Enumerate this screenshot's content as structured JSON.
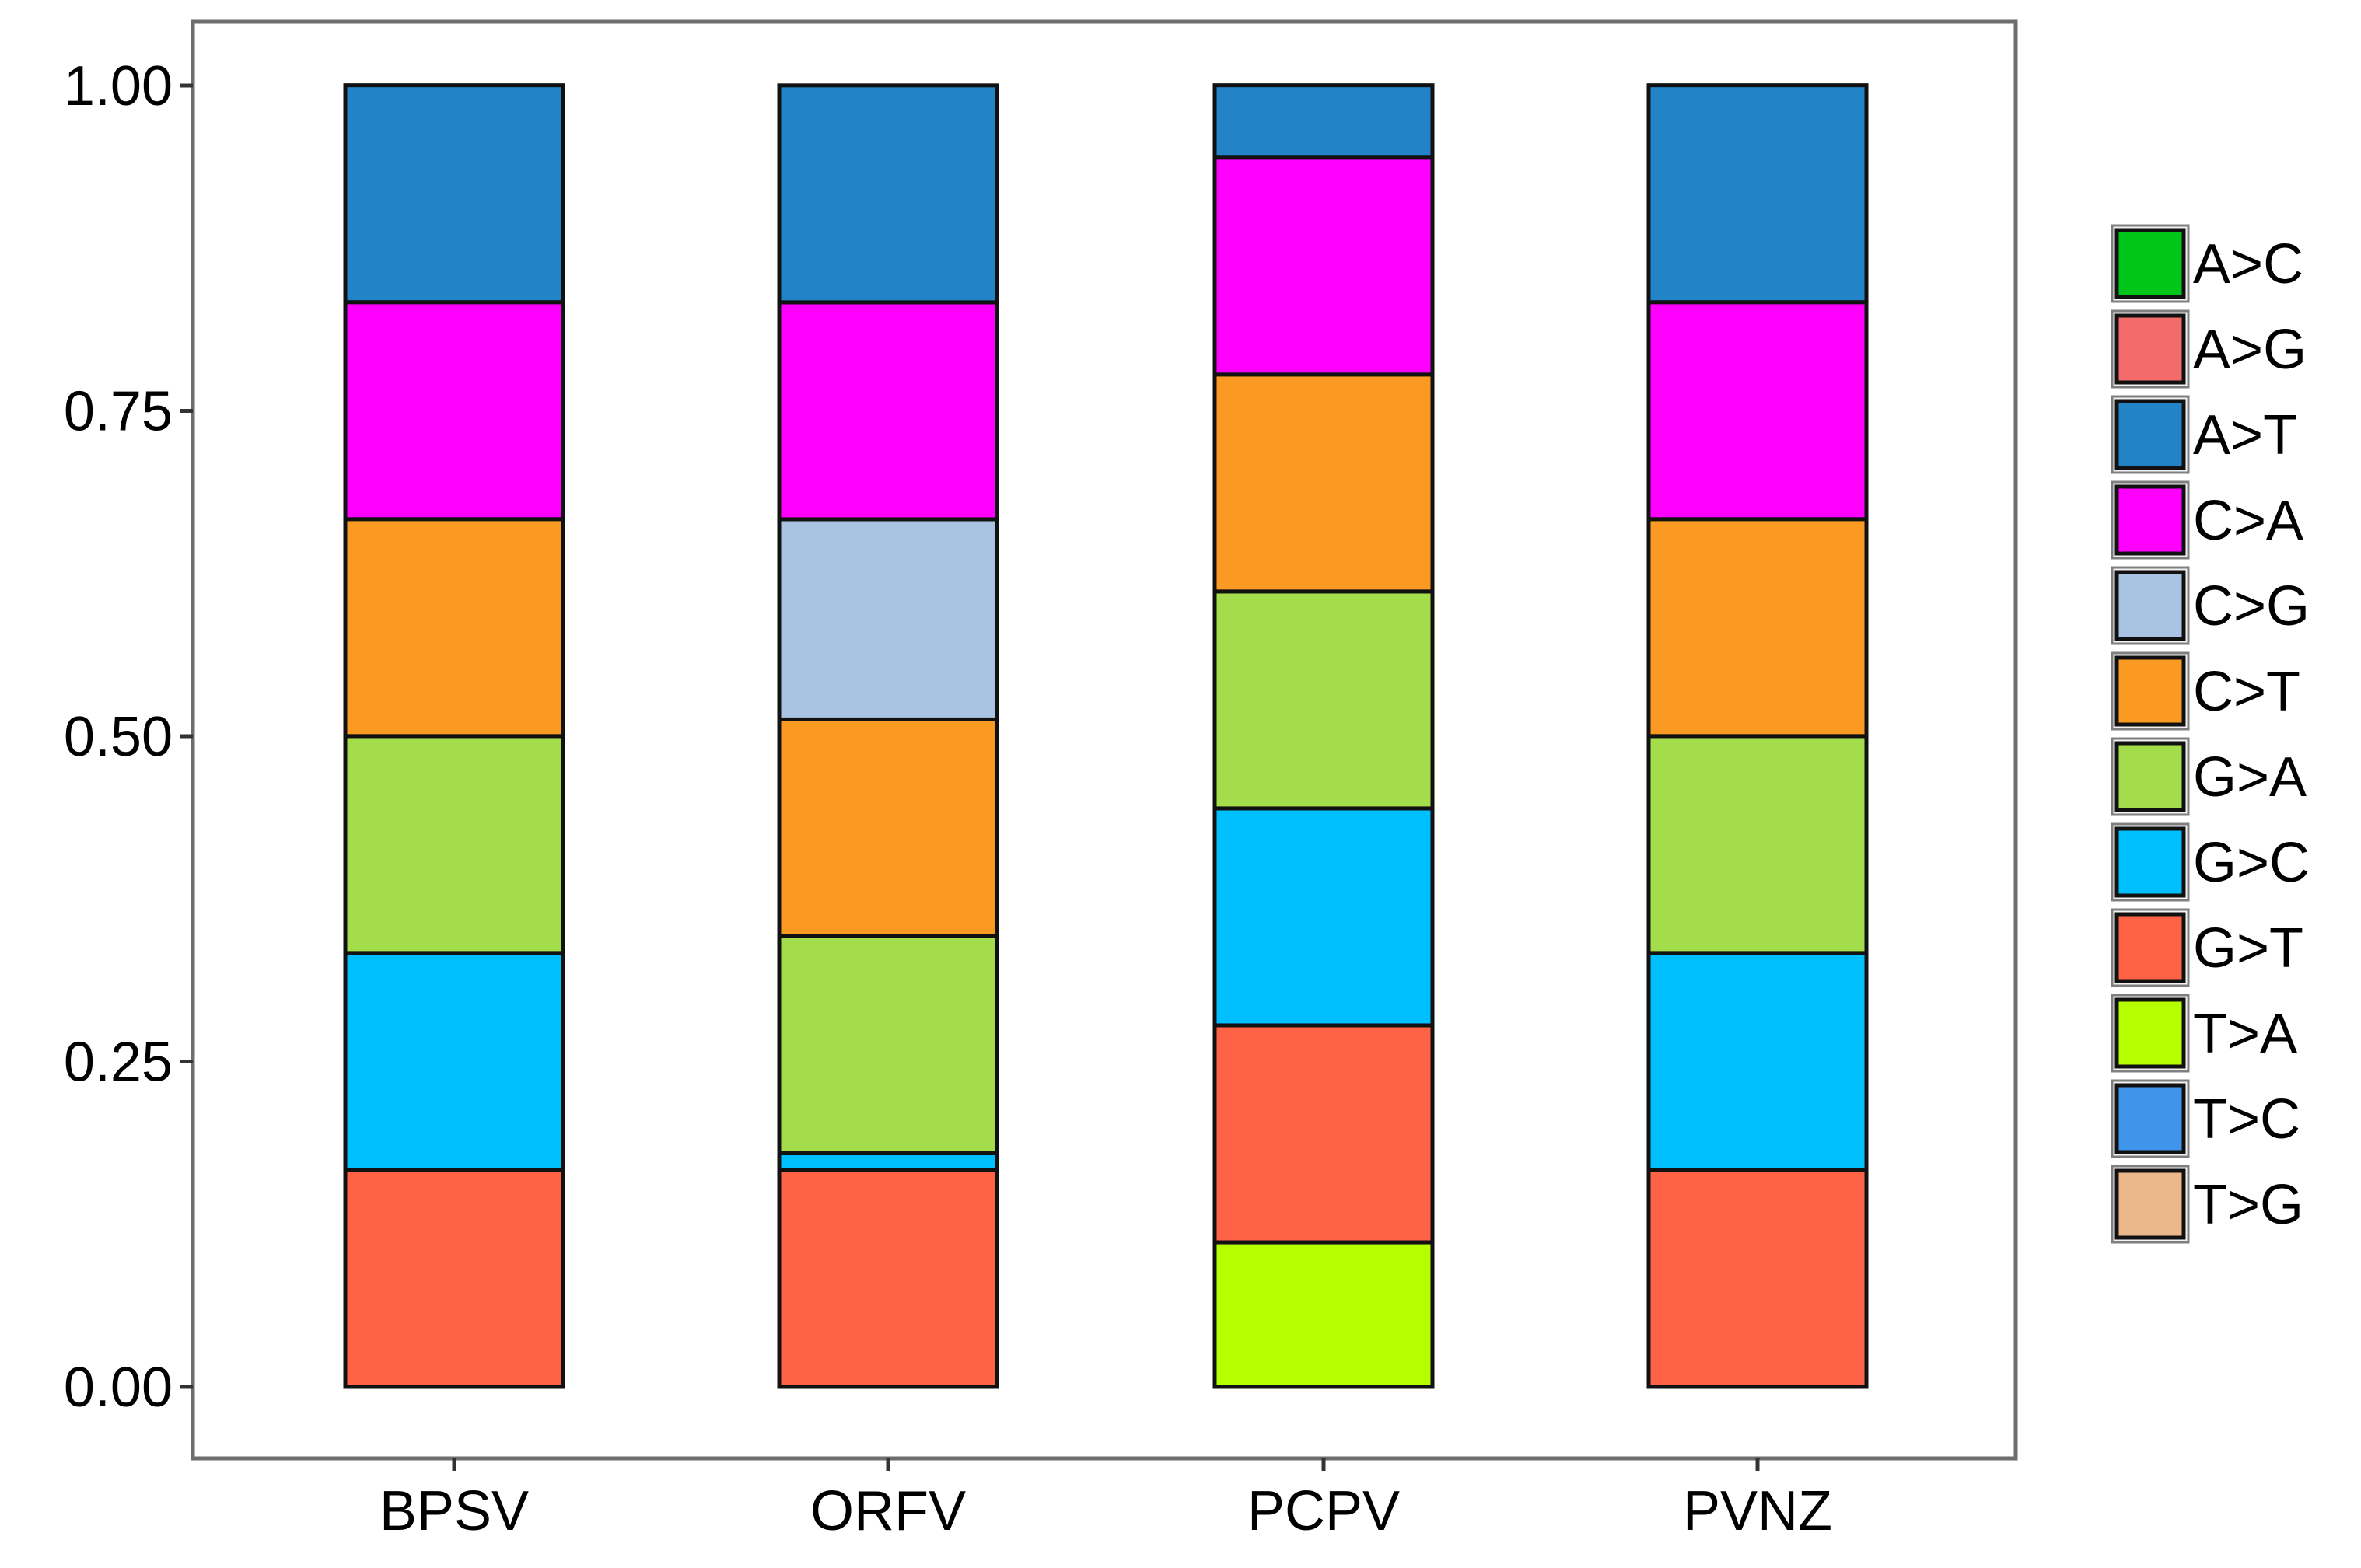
{
  "chart_data": {
    "type": "bar",
    "stacked": true,
    "normalized": true,
    "title": "",
    "xlabel": "",
    "ylabel": "",
    "ylim": [
      0,
      1
    ],
    "yticks": [
      "0.00",
      "0.25",
      "0.50",
      "0.75",
      "1.00"
    ],
    "ytick_values": [
      0,
      0.25,
      0.5,
      0.75,
      1.0
    ],
    "categories": [
      "BPSV",
      "ORFV",
      "PCPV",
      "PVNZ"
    ],
    "legend_position": "right",
    "series": [
      {
        "name": "A>C",
        "color": "#00c61a",
        "values": [
          0,
          0,
          0,
          0
        ]
      },
      {
        "name": "A>G",
        "color": "#f46b6b",
        "values": [
          0,
          0,
          0,
          0
        ]
      },
      {
        "name": "A>T",
        "color": "#2283c7",
        "values": [
          0.1667,
          0.1667,
          0.0556,
          0.1667
        ]
      },
      {
        "name": "C>A",
        "color": "#ff00ff",
        "values": [
          0.1667,
          0.1667,
          0.1667,
          0.1667
        ]
      },
      {
        "name": "C>G",
        "color": "#a9c4e2",
        "values": [
          0,
          0.1538,
          0,
          0
        ]
      },
      {
        "name": "C>T",
        "color": "#fa9a23",
        "values": [
          0.1667,
          0.1667,
          0.1667,
          0.1667
        ]
      },
      {
        "name": "G>A",
        "color": "#a4dd4b",
        "values": [
          0.1667,
          0.1667,
          0.1667,
          0.1667
        ]
      },
      {
        "name": "G>C",
        "color": "#00bfff",
        "values": [
          0.1667,
          0.0128,
          0.1667,
          0.1667
        ]
      },
      {
        "name": "G>T",
        "color": "#fe6345",
        "values": [
          0.1667,
          0.1667,
          0.1667,
          0.1667
        ]
      },
      {
        "name": "T>A",
        "color": "#b5ff00",
        "values": [
          0,
          0,
          0.1111,
          0
        ]
      },
      {
        "name": "T>C",
        "color": "#4094ea",
        "values": [
          0,
          0,
          0,
          0
        ]
      },
      {
        "name": "T>G",
        "color": "#ecb78a",
        "values": [
          0,
          0,
          0,
          0
        ]
      }
    ]
  }
}
